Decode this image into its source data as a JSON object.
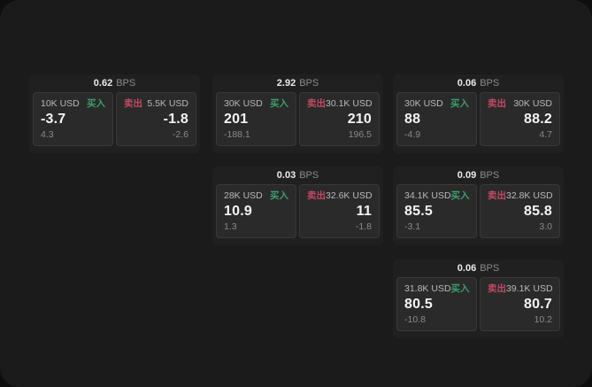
{
  "colors": {
    "buy": "#3d9f6a",
    "sell": "#c04a63",
    "panel_bg": "#1b1b1c",
    "card_bg": "#202021",
    "pane_bg": "#2a2a2b"
  },
  "labels": {
    "bps_unit": "BPS",
    "buy": "买入",
    "sell": "卖出"
  },
  "cards": [
    {
      "bps": "0.62",
      "buy": {
        "amount": "10K USD",
        "price": "-3.7",
        "delta": "4.3"
      },
      "sell": {
        "amount": "5.5K USD",
        "price": "-1.8",
        "delta": "-2.6"
      }
    },
    {
      "bps": "2.92",
      "buy": {
        "amount": "30K USD",
        "price": "201",
        "delta": "-188.1"
      },
      "sell": {
        "amount": "30.1K USD",
        "price": "210",
        "delta": "196.5"
      }
    },
    {
      "bps": "0.06",
      "buy": {
        "amount": "30K USD",
        "price": "88",
        "delta": "-4.9"
      },
      "sell": {
        "amount": "30K USD",
        "price": "88.2",
        "delta": "4.7"
      }
    },
    {
      "bps": "0.03",
      "buy": {
        "amount": "28K USD",
        "price": "10.9",
        "delta": "1.3"
      },
      "sell": {
        "amount": "32.6K USD",
        "price": "11",
        "delta": "-1.8"
      }
    },
    {
      "bps": "0.09",
      "buy": {
        "amount": "34.1K USD",
        "price": "85.5",
        "delta": "-3.1"
      },
      "sell": {
        "amount": "32.8K USD",
        "price": "85.8",
        "delta": "3.0"
      }
    },
    {
      "bps": "0.06",
      "buy": {
        "amount": "31.8K USD",
        "price": "80.5",
        "delta": "-10.8"
      },
      "sell": {
        "amount": "39.1K USD",
        "price": "80.7",
        "delta": "10.2"
      }
    }
  ]
}
